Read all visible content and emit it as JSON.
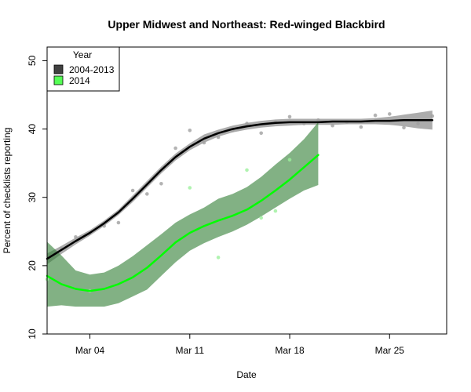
{
  "chart_data": {
    "type": "line",
    "title": "Upper Midwest and Northeast: Red-winged Blackbird",
    "xlabel": "Date",
    "ylabel": "Percent of checklists reporting",
    "x_ticks": [
      "Mar 04",
      "Mar 11",
      "Mar 18",
      "Mar 25"
    ],
    "x_tick_days": [
      4,
      11,
      18,
      25
    ],
    "xlim": [
      1,
      29
    ],
    "y_ticks": [
      10,
      20,
      30,
      40,
      50
    ],
    "ylim": [
      10,
      52
    ],
    "grid": false,
    "legend": {
      "title": "Year",
      "position": "top-left",
      "entries": [
        "2004-2013",
        "2014"
      ]
    },
    "series": [
      {
        "name": "2004-2013",
        "color": "#000000",
        "band_color": "#808080",
        "point_color": "#a0a0a0",
        "points": [
          {
            "x": "Mar 02",
            "y": 22.5
          },
          {
            "x": "Mar 03",
            "y": 24.2
          },
          {
            "x": "Mar 04",
            "y": 24.8
          },
          {
            "x": "Mar 05",
            "y": 25.8
          },
          {
            "x": "Mar 06",
            "y": 26.3
          },
          {
            "x": "Mar 07",
            "y": 31.0
          },
          {
            "x": "Mar 08",
            "y": 30.5
          },
          {
            "x": "Mar 09",
            "y": 32.0
          },
          {
            "x": "Mar 10",
            "y": 37.2
          },
          {
            "x": "Mar 11",
            "y": 39.8
          },
          {
            "x": "Mar 12",
            "y": 38.0
          },
          {
            "x": "Mar 13",
            "y": 38.8
          },
          {
            "x": "Mar 14",
            "y": 39.8
          },
          {
            "x": "Mar 15",
            "y": 40.8
          },
          {
            "x": "Mar 16",
            "y": 39.4
          },
          {
            "x": "Mar 17",
            "y": 41.0
          },
          {
            "x": "Mar 18",
            "y": 41.8
          },
          {
            "x": "Mar 19",
            "y": 40.8
          },
          {
            "x": "Mar 20",
            "y": 41.3
          },
          {
            "x": "Mar 21",
            "y": 40.5
          },
          {
            "x": "Mar 22",
            "y": 41.0
          },
          {
            "x": "Mar 23",
            "y": 40.3
          },
          {
            "x": "Mar 24",
            "y": 42.0
          },
          {
            "x": "Mar 25",
            "y": 42.2
          },
          {
            "x": "Mar 26",
            "y": 40.2
          },
          {
            "x": "Mar 27",
            "y": 40.8
          },
          {
            "x": "Mar 28",
            "y": 41.9
          }
        ],
        "smooth": [
          {
            "x": "Mar 01",
            "y": 21.0
          },
          {
            "x": "Mar 02",
            "y": 22.3
          },
          {
            "x": "Mar 03",
            "y": 23.6
          },
          {
            "x": "Mar 04",
            "y": 24.8
          },
          {
            "x": "Mar 05",
            "y": 26.2
          },
          {
            "x": "Mar 06",
            "y": 27.8
          },
          {
            "x": "Mar 07",
            "y": 29.8
          },
          {
            "x": "Mar 08",
            "y": 31.9
          },
          {
            "x": "Mar 09",
            "y": 34.0
          },
          {
            "x": "Mar 10",
            "y": 35.9
          },
          {
            "x": "Mar 11",
            "y": 37.4
          },
          {
            "x": "Mar 12",
            "y": 38.6
          },
          {
            "x": "Mar 13",
            "y": 39.4
          },
          {
            "x": "Mar 14",
            "y": 40.0
          },
          {
            "x": "Mar 15",
            "y": 40.4
          },
          {
            "x": "Mar 16",
            "y": 40.7
          },
          {
            "x": "Mar 17",
            "y": 40.9
          },
          {
            "x": "Mar 18",
            "y": 41.0
          },
          {
            "x": "Mar 19",
            "y": 41.0
          },
          {
            "x": "Mar 20",
            "y": 41.0
          },
          {
            "x": "Mar 21",
            "y": 41.1
          },
          {
            "x": "Mar 22",
            "y": 41.1
          },
          {
            "x": "Mar 23",
            "y": 41.1
          },
          {
            "x": "Mar 24",
            "y": 41.2
          },
          {
            "x": "Mar 25",
            "y": 41.2
          },
          {
            "x": "Mar 26",
            "y": 41.3
          },
          {
            "x": "Mar 27",
            "y": 41.3
          },
          {
            "x": "Mar 28",
            "y": 41.3
          }
        ],
        "band_lower": [
          20.2,
          21.7,
          23.1,
          24.4,
          25.8,
          27.4,
          29.3,
          31.4,
          33.5,
          35.4,
          36.9,
          38.0,
          38.9,
          39.5,
          39.9,
          40.2,
          40.4,
          40.5,
          40.6,
          40.6,
          40.6,
          40.7,
          40.7,
          40.7,
          40.6,
          40.4,
          40.1,
          39.9
        ],
        "band_upper": [
          21.8,
          22.9,
          24.1,
          25.2,
          26.6,
          28.2,
          30.3,
          32.4,
          34.5,
          36.4,
          37.9,
          39.2,
          39.9,
          40.5,
          40.9,
          41.2,
          41.4,
          41.5,
          41.5,
          41.5,
          41.5,
          41.5,
          41.5,
          41.6,
          41.8,
          42.1,
          42.4,
          42.7
        ]
      },
      {
        "name": "2014",
        "color": "#00ff00",
        "band_color": "#2e7d32",
        "point_color": "#9cf09c",
        "points": [
          {
            "x": "Mar 01",
            "y": 18.0
          },
          {
            "x": "Mar 04",
            "y": 16.3
          },
          {
            "x": "Mar 11",
            "y": 31.4
          },
          {
            "x": "Mar 13",
            "y": 21.2
          },
          {
            "x": "Mar 15",
            "y": 34.0
          },
          {
            "x": "Mar 16",
            "y": 27.0
          },
          {
            "x": "Mar 17",
            "y": 28.0
          },
          {
            "x": "Mar 18",
            "y": 35.5
          }
        ],
        "smooth": [
          {
            "x": "Mar 01",
            "y": 18.5
          },
          {
            "x": "Mar 02",
            "y": 17.3
          },
          {
            "x": "Mar 03",
            "y": 16.6
          },
          {
            "x": "Mar 04",
            "y": 16.3
          },
          {
            "x": "Mar 05",
            "y": 16.6
          },
          {
            "x": "Mar 06",
            "y": 17.3
          },
          {
            "x": "Mar 07",
            "y": 18.3
          },
          {
            "x": "Mar 08",
            "y": 19.7
          },
          {
            "x": "Mar 09",
            "y": 21.5
          },
          {
            "x": "Mar 10",
            "y": 23.4
          },
          {
            "x": "Mar 11",
            "y": 24.8
          },
          {
            "x": "Mar 12",
            "y": 25.8
          },
          {
            "x": "Mar 13",
            "y": 26.6
          },
          {
            "x": "Mar 14",
            "y": 27.3
          },
          {
            "x": "Mar 15",
            "y": 28.2
          },
          {
            "x": "Mar 16",
            "y": 29.5
          },
          {
            "x": "Mar 17",
            "y": 31.0
          },
          {
            "x": "Mar 18",
            "y": 32.6
          },
          {
            "x": "Mar 19",
            "y": 34.4
          },
          {
            "x": "Mar 20",
            "y": 36.2
          }
        ],
        "band_lower": [
          14.0,
          14.2,
          14.0,
          14.0,
          14.0,
          14.5,
          15.5,
          16.5,
          18.5,
          20.5,
          22.2,
          23.3,
          24.2,
          25.0,
          26.0,
          27.2,
          28.5,
          29.8,
          31.0,
          31.8
        ],
        "band_upper": [
          23.5,
          21.5,
          19.3,
          18.7,
          19.0,
          20.0,
          21.4,
          23.0,
          24.6,
          26.3,
          27.5,
          28.5,
          29.8,
          30.5,
          31.5,
          33.0,
          34.8,
          36.5,
          38.5,
          41.0
        ]
      }
    ]
  }
}
